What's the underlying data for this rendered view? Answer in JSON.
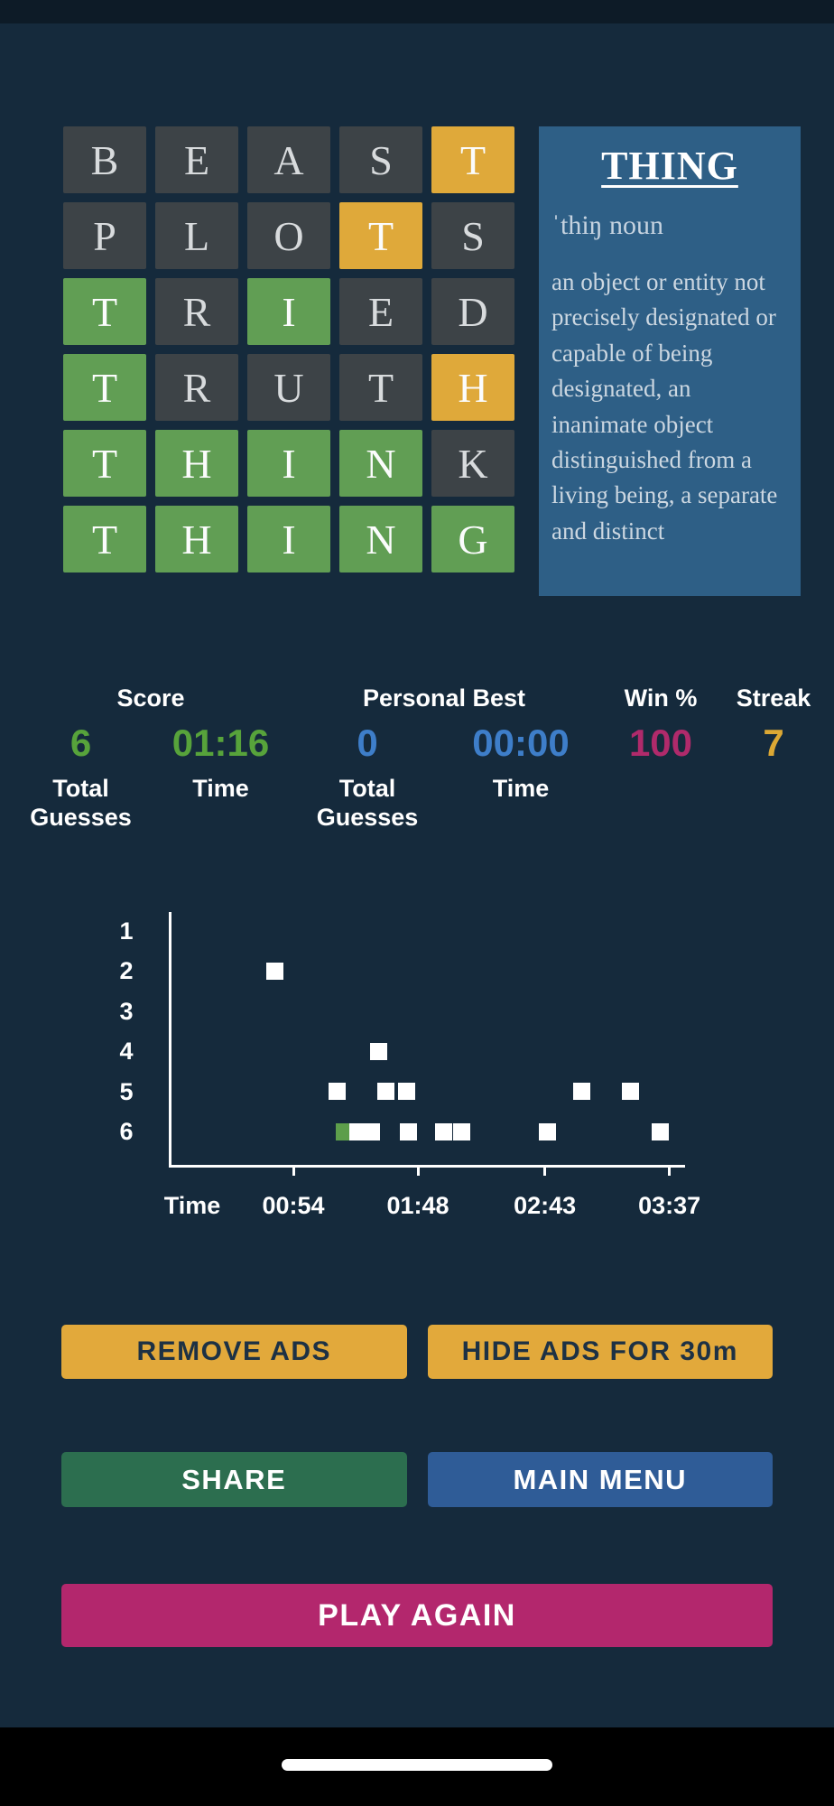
{
  "colors": {
    "background": "#152a3c",
    "tile_absent": "#3d4347",
    "tile_present": "#dfa93a",
    "tile_correct": "#619e54",
    "panel_bg": "#2e5f86",
    "score_green": "#57a33b",
    "best_blue": "#3e7ec9",
    "win_magenta": "#b02a6b",
    "streak_gold": "#dca834",
    "chart_point": "#ffffff",
    "chart_point_current": "#5d9e4b",
    "btn_gold": "#e2a93b",
    "btn_green": "#2c6e4f",
    "btn_blue": "#2f5c97",
    "btn_magenta": "#b3276d"
  },
  "board": {
    "rows": [
      {
        "letters": [
          "B",
          "E",
          "A",
          "S",
          "T"
        ],
        "states": [
          "absent",
          "absent",
          "absent",
          "absent",
          "present"
        ]
      },
      {
        "letters": [
          "P",
          "L",
          "O",
          "T",
          "S"
        ],
        "states": [
          "absent",
          "absent",
          "absent",
          "present",
          "absent"
        ]
      },
      {
        "letters": [
          "T",
          "R",
          "I",
          "E",
          "D"
        ],
        "states": [
          "correct",
          "absent",
          "correct",
          "absent",
          "absent"
        ]
      },
      {
        "letters": [
          "T",
          "R",
          "U",
          "T",
          "H"
        ],
        "states": [
          "correct",
          "absent",
          "absent",
          "absent",
          "present"
        ]
      },
      {
        "letters": [
          "T",
          "H",
          "I",
          "N",
          "K"
        ],
        "states": [
          "correct",
          "correct",
          "correct",
          "correct",
          "absent"
        ]
      },
      {
        "letters": [
          "T",
          "H",
          "I",
          "N",
          "G"
        ],
        "states": [
          "correct",
          "correct",
          "correct",
          "correct",
          "correct"
        ]
      }
    ]
  },
  "definition": {
    "word": "THING",
    "pronunciation": "ˈthiŋ noun",
    "body": "an object or entity not precisely designated or capable of being designated, an inanimate object distinguished from a living being, a separate and distinct"
  },
  "stats": {
    "score": {
      "header": "Score",
      "total_guesses": "6",
      "total_guesses_label": "Total Guesses",
      "time": "01:16",
      "time_label": "Time"
    },
    "personal_best": {
      "header": "Personal Best",
      "total_guesses": "0",
      "total_guesses_label": "Total Guesses",
      "time": "00:00",
      "time_label": "Time"
    },
    "win": {
      "header": "Win %",
      "value": "100"
    },
    "streak": {
      "header": "Streak",
      "value": "7"
    }
  },
  "chart_data": {
    "type": "scatter",
    "xlabel": "Time",
    "x_ticks": [
      "00:54",
      "01:48",
      "02:43",
      "03:37"
    ],
    "y_ticks": [
      "1",
      "2",
      "3",
      "4",
      "5",
      "6"
    ],
    "x_range_seconds": [
      0,
      222
    ],
    "y_meaning": "number of guesses",
    "points": [
      {
        "guesses": 2,
        "time": "00:46",
        "current": false
      },
      {
        "guesses": 4,
        "time": "01:31",
        "current": false
      },
      {
        "guesses": 5,
        "time": "01:13",
        "current": false
      },
      {
        "guesses": 5,
        "time": "01:34",
        "current": false
      },
      {
        "guesses": 5,
        "time": "01:43",
        "current": false
      },
      {
        "guesses": 5,
        "time": "02:59",
        "current": false
      },
      {
        "guesses": 5,
        "time": "03:20",
        "current": false
      },
      {
        "guesses": 6,
        "time": "01:16",
        "current": true
      },
      {
        "guesses": 6,
        "time": "01:22",
        "current": false
      },
      {
        "guesses": 6,
        "time": "01:28",
        "current": false
      },
      {
        "guesses": 6,
        "time": "01:44",
        "current": false
      },
      {
        "guesses": 6,
        "time": "01:59",
        "current": false
      },
      {
        "guesses": 6,
        "time": "02:07",
        "current": false
      },
      {
        "guesses": 6,
        "time": "02:44",
        "current": false
      },
      {
        "guesses": 6,
        "time": "03:33",
        "current": false
      }
    ]
  },
  "buttons": {
    "remove_ads": "REMOVE ADS",
    "hide_ads": "HIDE ADS FOR 30m",
    "share": "SHARE",
    "main_menu": "MAIN MENU",
    "play_again": "PLAY AGAIN"
  }
}
